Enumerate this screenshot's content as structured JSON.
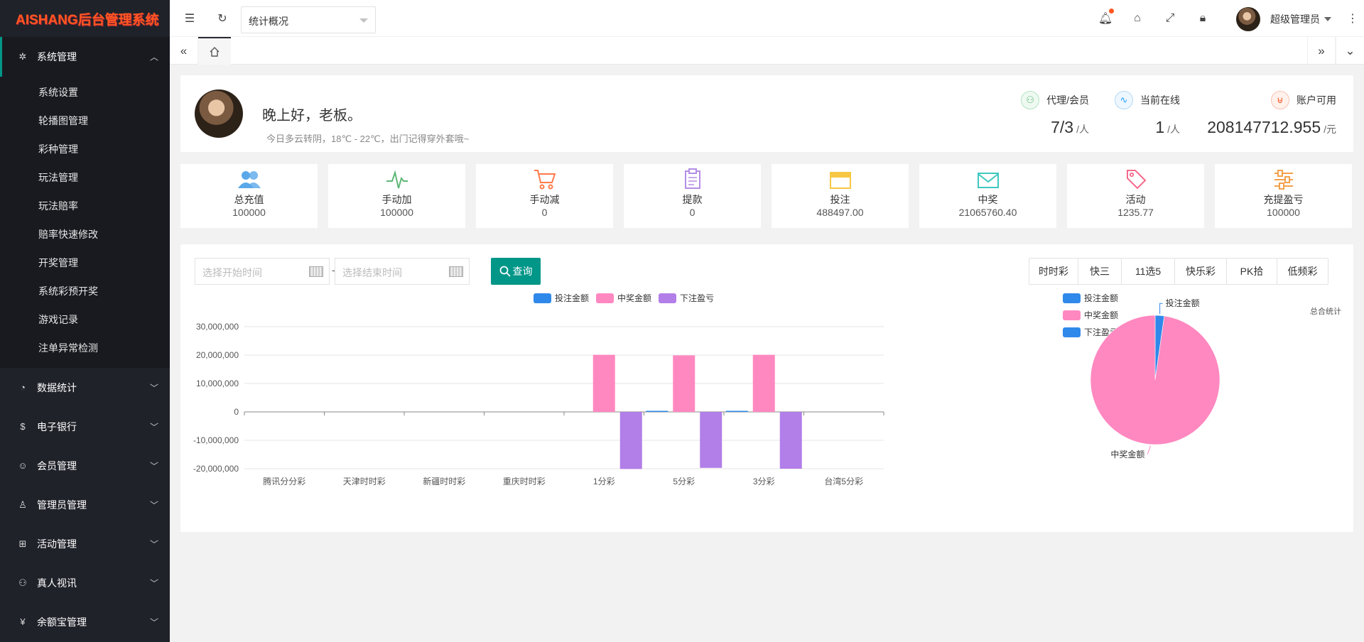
{
  "sidebar": {
    "logo": "AISHANG后台管理系统",
    "active_group": "系统管理",
    "sub_items": [
      "系统设置",
      "轮播图管理",
      "彩种管理",
      "玩法管理",
      "玩法赔率",
      "赔率快速修改",
      "开奖管理",
      "系统彩预开奖",
      "游戏记录",
      "注单异常检测"
    ],
    "groups": [
      "数据统计",
      "电子银行",
      "会员管理",
      "管理员管理",
      "活动管理",
      "真人视讯",
      "余额宝管理"
    ]
  },
  "header": {
    "select_value": "统计概况",
    "user_name": "超级管理员"
  },
  "welcome": {
    "greeting": "晚上好，老板。",
    "weather": "今日多云转阴，18℃ - 22℃，出门记得穿外套哦~"
  },
  "stats": [
    {
      "label": "代理/会员",
      "value": "7/3",
      "unit": "/人",
      "color": "#5fb878"
    },
    {
      "label": "当前在线",
      "value": "1",
      "unit": "/人",
      "color": "#1e9fff"
    },
    {
      "label": "账户可用",
      "value": "208147712.955",
      "unit": "/元",
      "color": "#ff5722"
    }
  ],
  "tiles": [
    {
      "label": "总充值",
      "value": "100000",
      "icon": "users-icon",
      "color": "#5aa8ea"
    },
    {
      "label": "手动加",
      "value": "100000",
      "icon": "pulse-icon",
      "color": "#5fb878"
    },
    {
      "label": "手动减",
      "value": "0",
      "icon": "cart-icon",
      "color": "#ff7b4a"
    },
    {
      "label": "提款",
      "value": "0",
      "icon": "clipboard-icon",
      "color": "#b48ee6"
    },
    {
      "label": "投注",
      "value": "488497.00",
      "icon": "card-icon",
      "color": "#f7c744"
    },
    {
      "label": "中奖",
      "value": "21065760.40",
      "icon": "mail-icon",
      "color": "#3fc8c0"
    },
    {
      "label": "活动",
      "value": "1235.77",
      "icon": "tag-icon",
      "color": "#f5698c"
    },
    {
      "label": "充提盈亏",
      "value": "100000",
      "icon": "sliders-icon",
      "color": "#f3a14a"
    }
  ],
  "filter": {
    "start_placeholder": "选择开始时间",
    "end_placeholder": "选择结束时间",
    "query_label": "查询",
    "lottery_buttons": [
      "时时彩",
      "快三",
      "11选5",
      "快乐彩",
      "PK拾",
      "低频彩"
    ]
  },
  "chart_data": [
    {
      "type": "bar",
      "categories": [
        "腾讯分分彩",
        "天津时时彩",
        "新疆时时彩",
        "重庆时时彩",
        "1分彩",
        "5分彩",
        "3分彩",
        "台湾5分彩"
      ],
      "series": [
        {
          "name": "投注金额",
          "color": "#2f89ea",
          "values": [
            0,
            0,
            0,
            0,
            0,
            300000,
            150000,
            0
          ]
        },
        {
          "name": "中奖金额",
          "color": "#ff88c0",
          "values": [
            0,
            0,
            0,
            0,
            20100000,
            19900000,
            20100000,
            0
          ]
        },
        {
          "name": "下注盈亏",
          "color": "#b27ee8",
          "values": [
            0,
            0,
            0,
            0,
            -20100000,
            -19700000,
            -20000000,
            0
          ]
        }
      ],
      "ylim": [
        -20000000,
        30000000
      ],
      "yticks": [
        "30,000,000",
        "20,000,000",
        "10,000,000",
        "0",
        "-10,000,000",
        "-20,000,000"
      ],
      "legend": "top-center"
    },
    {
      "type": "pie",
      "title": "总合统计",
      "legend": [
        "投注金额",
        "中奖金额",
        "下注盈亏"
      ],
      "legend_colors": [
        "#2f89ea",
        "#ff88c0",
        "#2f89ea"
      ],
      "slices": [
        {
          "name": "投注金额",
          "value": 488497,
          "color": "#2f89ea"
        },
        {
          "name": "中奖金额",
          "value": 21065760.4,
          "color": "#ff88c0"
        }
      ]
    }
  ]
}
